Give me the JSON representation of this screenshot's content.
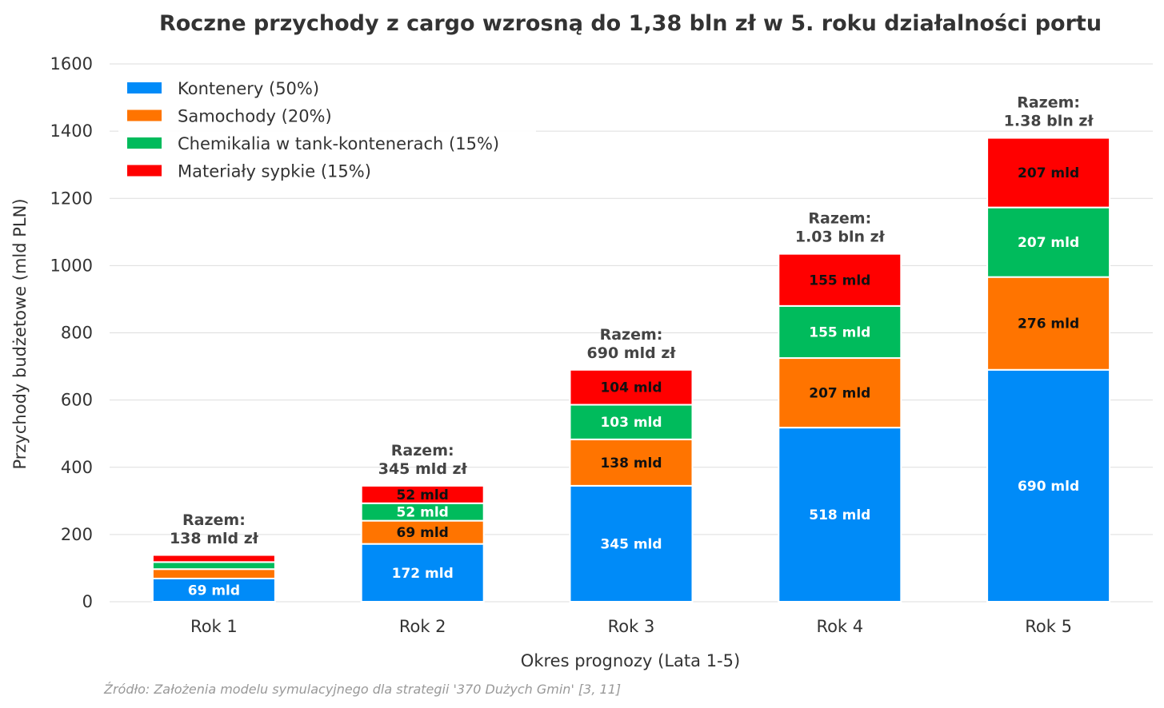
{
  "chart_data": {
    "type": "bar",
    "stacked": true,
    "title": "Roczne przychody z cargo wzrosną do 1,38 bln zł w 5. roku działalności portu",
    "xlabel": "Okres prognozy (Lata 1-5)",
    "ylabel": "Przychody budżetowe (mld PLN)",
    "ylim": [
      0,
      1600
    ],
    "yticks": [
      0,
      200,
      400,
      600,
      800,
      1000,
      1200,
      1400,
      1600
    ],
    "grid": "horizontal",
    "legend_position": "top-left",
    "categories": [
      "Rok 1",
      "Rok 2",
      "Rok 3",
      "Rok 4",
      "Rok 5"
    ],
    "series": [
      {
        "name": "Kontenery (50%)",
        "color": "#008bf8",
        "label_color": "#ffffff",
        "values": [
          69,
          172,
          345,
          518,
          690
        ],
        "labels": [
          "69 mld",
          "172 mld",
          "345 mld",
          "518 mld",
          "690 mld"
        ]
      },
      {
        "name": "Samochody (20%)",
        "color": "#ff7400",
        "label_color": "#111111",
        "values": [
          28,
          69,
          138,
          207,
          276
        ],
        "labels": [
          "",
          "69 mld",
          "138 mld",
          "207 mld",
          "276 mld"
        ]
      },
      {
        "name": "Chemikalia w tank-kontenerach (15%)",
        "color": "#00bb5c",
        "label_color": "#ffffff",
        "values": [
          21,
          52,
          103,
          155,
          207
        ],
        "labels": [
          "",
          "52 mld",
          "103 mld",
          "155 mld",
          "207 mld"
        ]
      },
      {
        "name": "Materiały sypkie (15%)",
        "color": "#ff0000",
        "label_color": "#111111",
        "values": [
          21,
          52,
          104,
          155,
          207
        ],
        "labels": [
          "",
          "52 mld",
          "104 mld",
          "155 mld",
          "207 mld"
        ]
      }
    ],
    "totals": [
      {
        "line1": "Razem:",
        "line2": "138 mld zł",
        "value": 138
      },
      {
        "line1": "Razem:",
        "line2": "345 mld zł",
        "value": 345
      },
      {
        "line1": "Razem:",
        "line2": "690 mld zł",
        "value": 690
      },
      {
        "line1": "Razem:",
        "line2": "1.03 bln zł",
        "value": 1035
      },
      {
        "line1": "Razem:",
        "line2": "1.38 bln zł",
        "value": 1380
      }
    ],
    "source": "Źródło: Założenia modelu symulacyjnego dla strategii '370 Dużych Gmin' [3, 11]"
  }
}
